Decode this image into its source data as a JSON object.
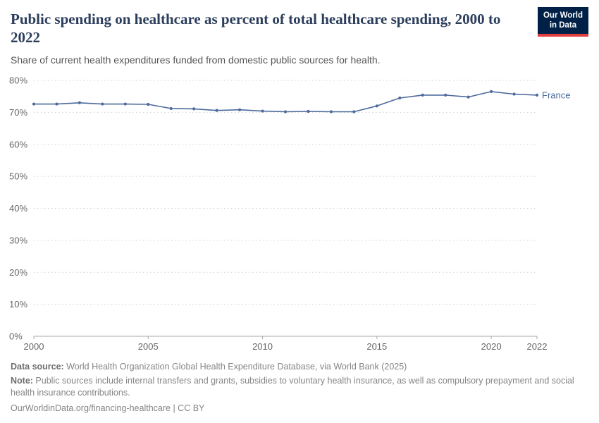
{
  "header": {
    "title": "Public spending on healthcare as percent of total healthcare spending, 2000 to 2022",
    "subtitle": "Share of current health expenditures funded from domestic public sources for health.",
    "logo": {
      "line1": "Our World",
      "line2": "in Data"
    }
  },
  "chart_data": {
    "type": "line",
    "title": "Public spending on healthcare as percent of total healthcare spending, 2000 to 2022",
    "xlabel": "",
    "ylabel": "",
    "ylim": [
      0,
      80
    ],
    "yticks": [
      0,
      10,
      20,
      30,
      40,
      50,
      60,
      70,
      80
    ],
    "ytick_suffix": "%",
    "xticks": [
      2000,
      2005,
      2010,
      2015,
      2020,
      2022
    ],
    "grid": "horizontal-dotted",
    "legend_position": "end-of-line",
    "series": [
      {
        "name": "France",
        "color": "#4C6A9C",
        "x": [
          2000,
          2001,
          2002,
          2003,
          2004,
          2005,
          2006,
          2007,
          2008,
          2009,
          2010,
          2011,
          2012,
          2013,
          2014,
          2015,
          2016,
          2017,
          2018,
          2019,
          2020,
          2021,
          2022
        ],
        "values": [
          72.6,
          72.6,
          73.0,
          72.6,
          72.6,
          72.5,
          71.2,
          71.1,
          70.6,
          70.8,
          70.4,
          70.2,
          70.3,
          70.2,
          70.2,
          72.0,
          74.5,
          75.4,
          75.4,
          74.8,
          76.5,
          75.7,
          75.4
        ]
      }
    ]
  },
  "footer": {
    "source_label": "Data source:",
    "source_text": " World Health Organization Global Health Expenditure Database, via World Bank (2025)",
    "note_label": "Note:",
    "note_text": " Public sources include internal transfers and grants, subsidies to voluntary health insurance, as well as compulsory prepayment and social health insurance contributions.",
    "link": "OurWorldinData.org/financing-healthcare | CC BY"
  }
}
